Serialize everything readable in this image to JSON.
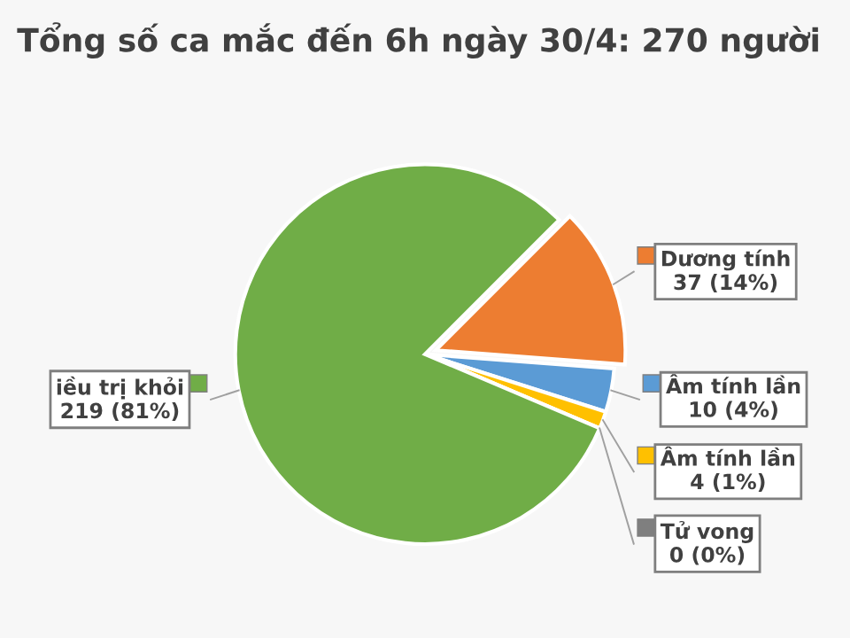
{
  "chart_data": {
    "type": "pie",
    "title": "Tổng số ca mắc đến 6h ngày 30/4: 270 người",
    "categories": [
      "Dương tính",
      "Âm tính lần",
      "Âm tính lần",
      "Tử vong",
      "iều trị khỏi"
    ],
    "values": [
      37,
      10,
      4,
      0,
      219
    ],
    "value_labels": [
      "37 (14%)",
      "10 (4%)",
      "4 (1%)",
      "0 (0%)",
      "219 (81%)"
    ],
    "colors": [
      "#ed7d31",
      "#5b9bd5",
      "#ffc000",
      "#7f7f7f",
      "#70ad47"
    ],
    "legend": "right"
  }
}
